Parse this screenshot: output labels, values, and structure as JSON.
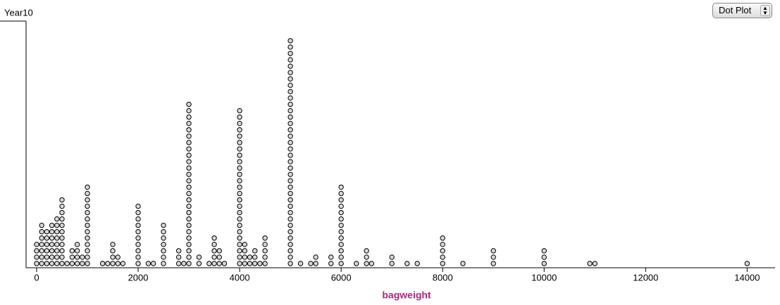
{
  "chart_data": {
    "type": "dot",
    "title": "Year10",
    "control": "Dot Plot",
    "x_label": "bagweight",
    "x": [
      0,
      100,
      200,
      300,
      400,
      500,
      600,
      700,
      800,
      900,
      1000,
      1300,
      1400,
      1500,
      1600,
      1700,
      2000,
      2200,
      2300,
      2500,
      2800,
      2900,
      3000,
      3200,
      3400,
      3500,
      3600,
      3700,
      4000,
      4100,
      4200,
      4300,
      4400,
      4500,
      5000,
      5200,
      5400,
      5500,
      5800,
      6000,
      6300,
      6500,
      6600,
      7000,
      7300,
      7500,
      8000,
      8400,
      9000,
      10000,
      10900,
      11000,
      14000
    ],
    "values": [
      4,
      7,
      6,
      7,
      8,
      11,
      1,
      3,
      4,
      2,
      13,
      1,
      1,
      4,
      2,
      1,
      10,
      1,
      1,
      7,
      3,
      1,
      26,
      2,
      1,
      5,
      3,
      1,
      25,
      4,
      2,
      3,
      1,
      5,
      36,
      1,
      1,
      2,
      2,
      13,
      1,
      3,
      1,
      2,
      1,
      1,
      5,
      1,
      3,
      3,
      1,
      1,
      1
    ],
    "xlim": [
      -208,
      14550
    ],
    "xticks": [
      0,
      2000,
      4000,
      6000,
      8000,
      10000,
      12000,
      14000
    ],
    "dot_color": "#d8d8d8"
  }
}
